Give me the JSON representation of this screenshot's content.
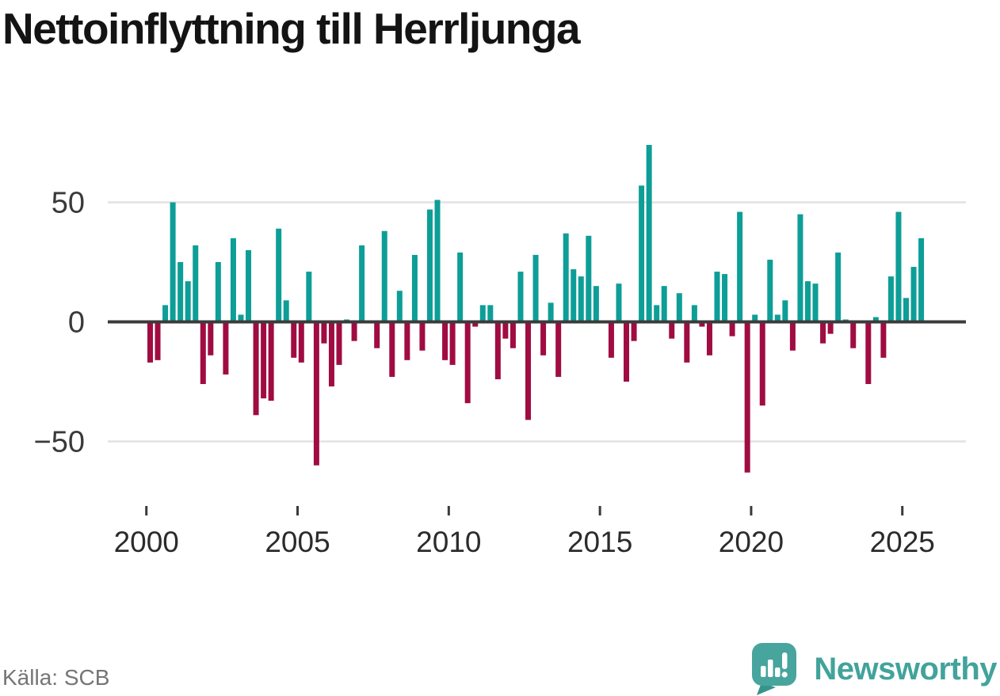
{
  "title": "Nettoinflyttning till Herrljunga",
  "source": "Källa: SCB",
  "brand": {
    "name": "Newsworthy",
    "icon": "newsworthy-bubble-barchart-icon",
    "color": "#42a39b",
    "icon_tail_color": "#37948c"
  },
  "colors": {
    "positive": "#0d9e97",
    "negative": "#a00c42",
    "gridline": "#e2e2e2",
    "zero_line": "#3b3b3b",
    "axis_text": "#3a3a3a",
    "tick_mark": "#3a3a3a",
    "title_text": "#141414",
    "source_text": "#757575",
    "background": "#ffffff"
  },
  "chart_data": {
    "type": "bar",
    "title": "Nettoinflyttning till Herrljunga",
    "xlabel": "",
    "ylabel": "",
    "frequency": "quarterly",
    "start_period": "2000Q1",
    "end_period": "2025Q3",
    "n_points": 103,
    "x_tick_years": [
      2000,
      2005,
      2010,
      2015,
      2020,
      2025
    ],
    "y_ticks": [
      50,
      0,
      -50
    ],
    "ylim": [
      -75,
      80
    ],
    "grid": "horizontal",
    "legend": "none",
    "positive_color": "#0d9e97",
    "negative_color": "#a00c42",
    "values": [
      -17,
      -16,
      7,
      50,
      25,
      17,
      32,
      -26,
      -14,
      25,
      -22,
      35,
      3,
      30,
      -39,
      -32,
      -33,
      39,
      9,
      -15,
      -17,
      21,
      -60,
      -9,
      -27,
      -18,
      1,
      -8,
      32,
      0,
      -11,
      38,
      -23,
      13,
      -16,
      28,
      -12,
      47,
      51,
      -16,
      -18,
      29,
      -34,
      -2,
      7,
      7,
      -24,
      -7,
      -11,
      21,
      -41,
      28,
      -14,
      8,
      -23,
      37,
      22,
      19,
      36,
      15,
      0,
      -15,
      16,
      -25,
      -8,
      57,
      74,
      7,
      15,
      -7,
      12,
      -17,
      7,
      -2,
      -14,
      21,
      20,
      -6,
      46,
      -63,
      3,
      -35,
      26,
      3,
      9,
      -12,
      45,
      17,
      16,
      -9,
      -5,
      29,
      1,
      -11,
      0,
      -26,
      2,
      -15,
      19,
      46,
      10,
      23,
      35
    ]
  }
}
